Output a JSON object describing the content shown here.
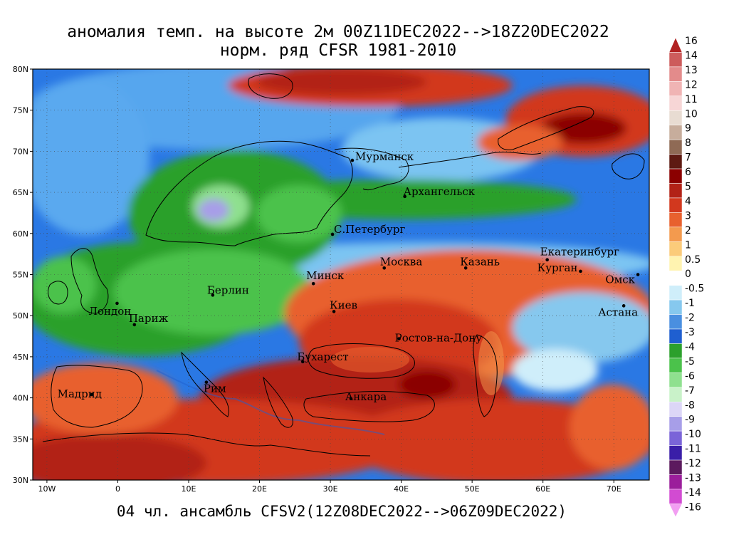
{
  "title": {
    "line1": "аномалия темп. на высоте 2м 00Z11DEC2022-->18Z20DEC2022",
    "line2": "норм. ряд CFSR 1981-2010",
    "footer": "04 чл. ансамбль CFSV2(12Z08DEC2022-->06Z09DEC2022)"
  },
  "map": {
    "lon_range": [
      -12,
      75
    ],
    "lat_range": [
      30,
      80
    ],
    "lat_ticks": [
      "30N",
      "35N",
      "40N",
      "45N",
      "50N",
      "55N",
      "60N",
      "65N",
      "70N",
      "75N",
      "80N"
    ],
    "lon_ticks": [
      "10W",
      "0",
      "10E",
      "20E",
      "30E",
      "40E",
      "50E",
      "60E",
      "70E"
    ],
    "cities": [
      {
        "name": "Мурманск",
        "lon": 33.1,
        "lat": 68.9
      },
      {
        "name": "Архангельск",
        "lon": 40.5,
        "lat": 64.5
      },
      {
        "name": "С.Петербург",
        "lon": 30.3,
        "lat": 59.9
      },
      {
        "name": "Москва",
        "lon": 37.6,
        "lat": 55.8
      },
      {
        "name": "Казань",
        "lon": 49.1,
        "lat": 55.8
      },
      {
        "name": "Екатеринбург",
        "lon": 60.6,
        "lat": 56.8
      },
      {
        "name": "Курган",
        "lon": 65.3,
        "lat": 55.4
      },
      {
        "name": "Омск",
        "lon": 73.4,
        "lat": 55.0
      },
      {
        "name": "Астана",
        "lon": 71.4,
        "lat": 51.2
      },
      {
        "name": "Минск",
        "lon": 27.6,
        "lat": 53.9
      },
      {
        "name": "Киев",
        "lon": 30.5,
        "lat": 50.5
      },
      {
        "name": "Берлин",
        "lon": 13.4,
        "lat": 52.5
      },
      {
        "name": "Лондон",
        "lon": -0.1,
        "lat": 51.5
      },
      {
        "name": "Париж",
        "lon": 2.35,
        "lat": 48.9
      },
      {
        "name": "Ростов-на-Дону",
        "lon": 39.7,
        "lat": 47.2
      },
      {
        "name": "Бухарест",
        "lon": 26.1,
        "lat": 44.4
      },
      {
        "name": "Рим",
        "lon": 12.5,
        "lat": 41.9
      },
      {
        "name": "Мадрид",
        "lon": -3.7,
        "lat": 40.4
      },
      {
        "name": "Анкара",
        "lon": 32.9,
        "lat": 39.9
      }
    ]
  },
  "colorbar": {
    "labels": [
      "16",
      "14",
      "13",
      "12",
      "11",
      "10",
      "9",
      "8",
      "7",
      "6",
      "5",
      "4",
      "3",
      "2",
      "1",
      "0.5",
      "0",
      "-0.5",
      "-1",
      "-2",
      "-3",
      "-4",
      "-5",
      "-6",
      "-7",
      "-8",
      "-9",
      "-10",
      "-11",
      "-12",
      "-13",
      "-14",
      "-16"
    ],
    "colors": [
      "#b22222",
      "#cd5c5c",
      "#e38b8b",
      "#f0b4b4",
      "#f7d6d6",
      "#e8dcd2",
      "#c7ad9c",
      "#8f6a55",
      "#5e1a12",
      "#8b0000",
      "#b22217",
      "#d2381e",
      "#e8612e",
      "#f39a4e",
      "#fbcb7a",
      "#fff3b0",
      "#ffffff",
      "#cfeefa",
      "#86c8ee",
      "#4a8fe0",
      "#1f5fd0",
      "#2ca02c",
      "#4bc24b",
      "#8fe08f",
      "#c9f2c9",
      "#dcd6f7",
      "#a79ee8",
      "#7a64d8",
      "#3a1ea8",
      "#5c1a5e",
      "#9b1e9b",
      "#d24bd2",
      "#f29ef2"
    ]
  }
}
